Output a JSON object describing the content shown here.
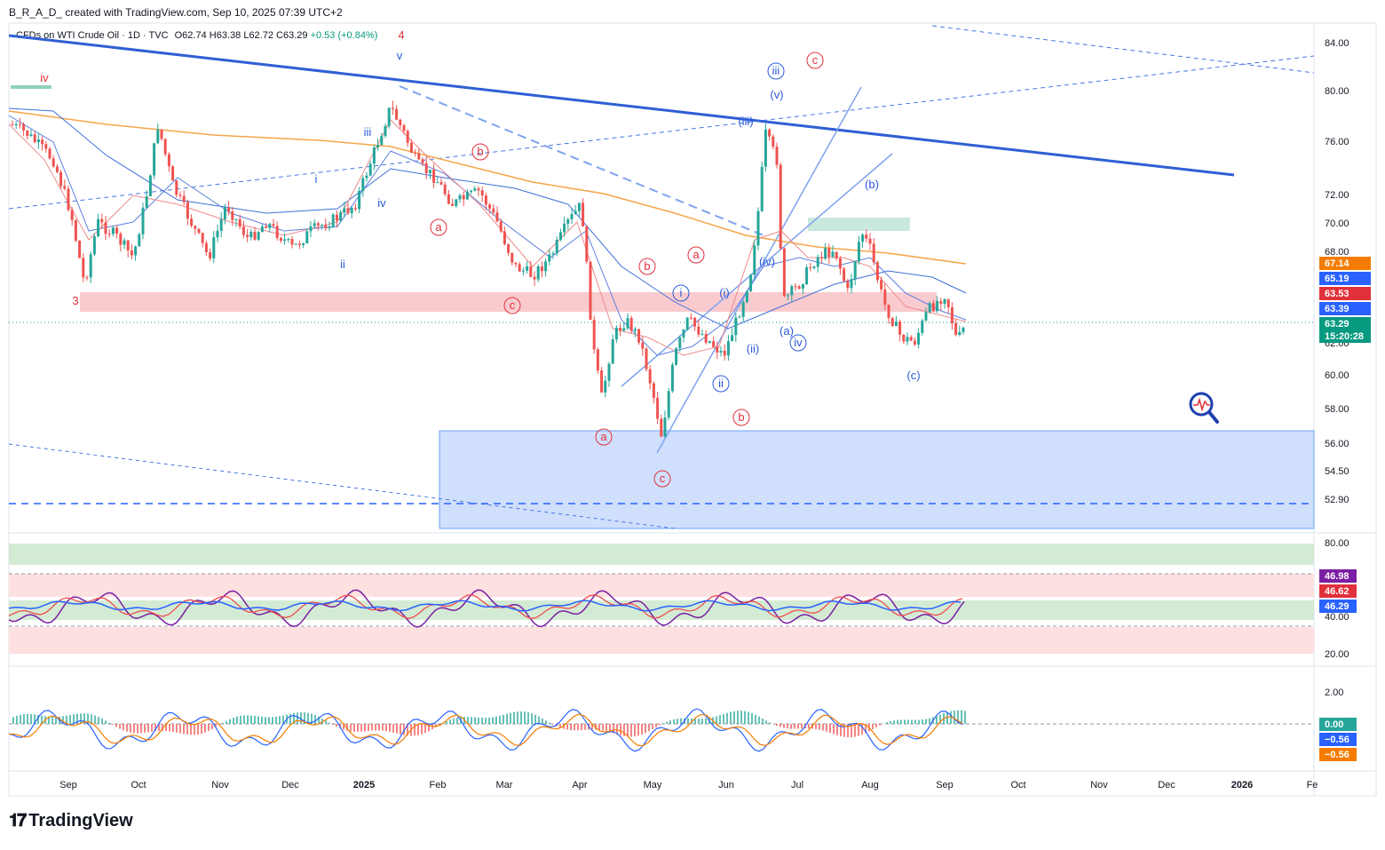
{
  "header": {
    "caption": "B_R_A_D_ created with TradingView.com, Sep 10, 2025 07:39 UTC+2",
    "symbol": "CFDs on WTI Crude Oil · 1D · TVC",
    "o_label": "O",
    "o": "62.74",
    "h_label": "H",
    "h": "63.38",
    "l_label": "L",
    "l": "62.72",
    "c_label": "C",
    "c": "63.29",
    "change": "+0.53 (+0.84%)"
  },
  "footer": {
    "logo_text": "TradingView"
  },
  "chart_data": {
    "type": "candlestick",
    "x_ticks": [
      "Sep",
      "Oct",
      "Nov",
      "Dec",
      "2025",
      "Feb",
      "Mar",
      "Apr",
      "May",
      "Jun",
      "Jul",
      "Aug",
      "Sep",
      "Oct",
      "Nov",
      "Dec",
      "2026",
      "Fe"
    ],
    "price_ticks": [
      "84.00",
      "80.00",
      "76.00",
      "72.00",
      "70.00",
      "68.00",
      "62.00",
      "60.00",
      "58.00",
      "56.00",
      "54.50",
      "52.90"
    ],
    "price_tags": [
      {
        "value": "67.14",
        "color": "#f57c00"
      },
      {
        "value": "65.19",
        "color": "#2962ff"
      },
      {
        "value": "63.53",
        "color": "#e0313b"
      },
      {
        "value": "63.39",
        "color": "#2962ff"
      },
      {
        "value": "63.29",
        "color": "#089981"
      },
      {
        "value": "15:20:28",
        "color": "#089981"
      }
    ],
    "rsi_ticks": [
      "80.00",
      "40.00",
      "20.00"
    ],
    "rsi_tags": [
      {
        "value": "46.98",
        "color": "#7b1fa2"
      },
      {
        "value": "46.62",
        "color": "#e0313b"
      },
      {
        "value": "46.29",
        "color": "#2962ff"
      }
    ],
    "macd_ticks": [
      "2.00"
    ],
    "macd_tags": [
      {
        "value": "0.00",
        "color": "#26a69a"
      },
      {
        "value": "−0.56",
        "color": "#2962ff"
      },
      {
        "value": "−0.56",
        "color": "#f57c00"
      }
    ],
    "wave_labels": [
      {
        "t": "iv",
        "c": "red"
      },
      {
        "t": "3",
        "c": "red"
      },
      {
        "t": "4",
        "c": "red"
      },
      {
        "t": "v",
        "c": "blue"
      },
      {
        "t": "iii",
        "c": "blue"
      },
      {
        "t": "i",
        "c": "blue"
      },
      {
        "t": "iv",
        "c": "blue"
      },
      {
        "t": "ii",
        "c": "blue"
      },
      {
        "t": "a",
        "c": "red"
      },
      {
        "t": "b",
        "c": "red"
      },
      {
        "t": "c",
        "c": "red"
      },
      {
        "t": "a",
        "c": "red"
      },
      {
        "t": "b",
        "c": "red"
      },
      {
        "t": "c",
        "c": "red"
      },
      {
        "t": "a",
        "c": "red"
      },
      {
        "t": "b",
        "c": "red"
      },
      {
        "t": "i",
        "c": "blue"
      },
      {
        "t": "ii",
        "c": "blue"
      },
      {
        "t": "(i)",
        "c": "blue"
      },
      {
        "t": "(ii)",
        "c": "blue"
      },
      {
        "t": "(iii)",
        "c": "blue"
      },
      {
        "t": "(iv)",
        "c": "blue"
      },
      {
        "t": "(v)",
        "c": "blue"
      },
      {
        "t": "iii",
        "c": "blue"
      },
      {
        "t": "iv",
        "c": "blue"
      },
      {
        "t": "c",
        "c": "red"
      },
      {
        "t": "(a)",
        "c": "blue"
      },
      {
        "t": "(b)",
        "c": "blue"
      },
      {
        "t": "(c)",
        "c": "blue"
      }
    ]
  }
}
